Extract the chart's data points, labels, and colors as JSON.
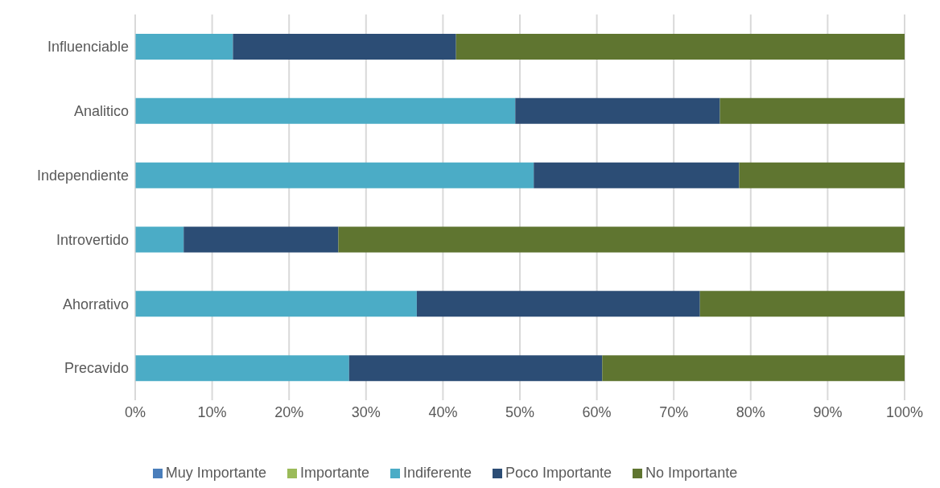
{
  "chart_data": {
    "type": "bar",
    "orientation": "horizontal",
    "stacked": true,
    "categories": [
      "Influenciable",
      "Analitico",
      "Independiente",
      "Introvertido",
      "Ahorrativo",
      "Precavido"
    ],
    "series": [
      {
        "name": "Muy Importante",
        "color": "#4a7ebb",
        "values": [
          0,
          0,
          0,
          0,
          0,
          0
        ]
      },
      {
        "name": "Importante",
        "color": "#9bbb59",
        "values": [
          0,
          0,
          0,
          0,
          0,
          0
        ]
      },
      {
        "name": "Indiferente",
        "color": "#4bacc6",
        "values": [
          12.7,
          49.4,
          51.8,
          6.3,
          36.6,
          27.8
        ]
      },
      {
        "name": "Poco Importante",
        "color": "#2c4d75",
        "values": [
          29.0,
          26.6,
          26.7,
          20.1,
          36.8,
          32.9
        ]
      },
      {
        "name": "No Importante",
        "color": "#5f7530",
        "values": [
          58.3,
          24.0,
          21.5,
          73.6,
          26.6,
          39.3
        ]
      }
    ],
    "xlim": [
      0,
      100
    ],
    "xticks": [
      {
        "value": 0,
        "label": "0%"
      },
      {
        "value": 10,
        "label": "10%"
      },
      {
        "value": 20,
        "label": "20%"
      },
      {
        "value": 30,
        "label": "30%"
      },
      {
        "value": 40,
        "label": "40%"
      },
      {
        "value": 50,
        "label": "50%"
      },
      {
        "value": 60,
        "label": "60%"
      },
      {
        "value": 70,
        "label": "70%"
      },
      {
        "value": 80,
        "label": "80%"
      },
      {
        "value": 90,
        "label": "90%"
      },
      {
        "value": 100,
        "label": "100%"
      }
    ],
    "grid": "x",
    "legend": "bottom"
  }
}
